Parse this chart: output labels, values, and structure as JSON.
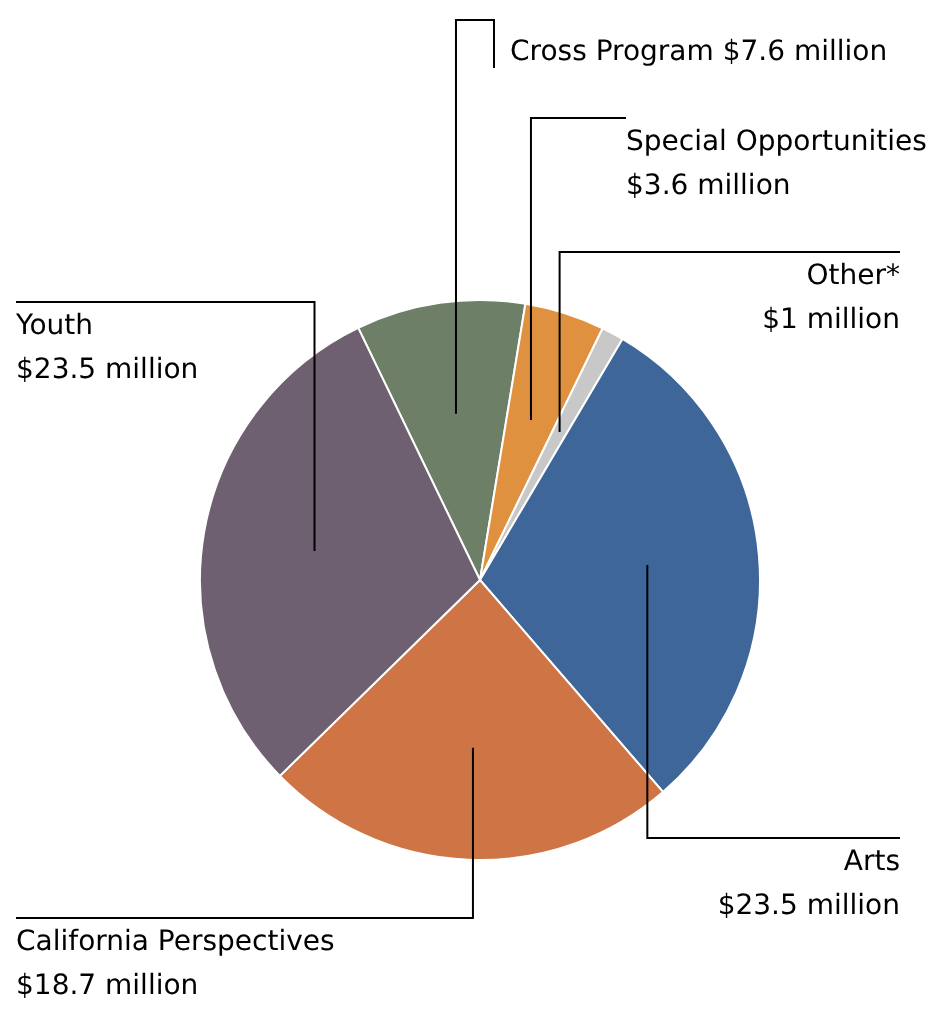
{
  "chart_data": {
    "type": "pie",
    "categories": [
      "Cross Program",
      "Special Opportunities",
      "Other*",
      "Arts",
      "California Perspectives",
      "Youth"
    ],
    "values": [
      7.6,
      3.6,
      1,
      23.5,
      18.7,
      23.5
    ],
    "value_labels": [
      "$7.6 million",
      "$3.6 million",
      "$1 million",
      "$23.5 million",
      "$18.7 million",
      "$23.5 million"
    ],
    "colors": [
      "#6e7f68",
      "#e0913f",
      "#c8c8c8",
      "#3e6699",
      "#cf7445",
      "#6e6070"
    ],
    "legend": false
  }
}
